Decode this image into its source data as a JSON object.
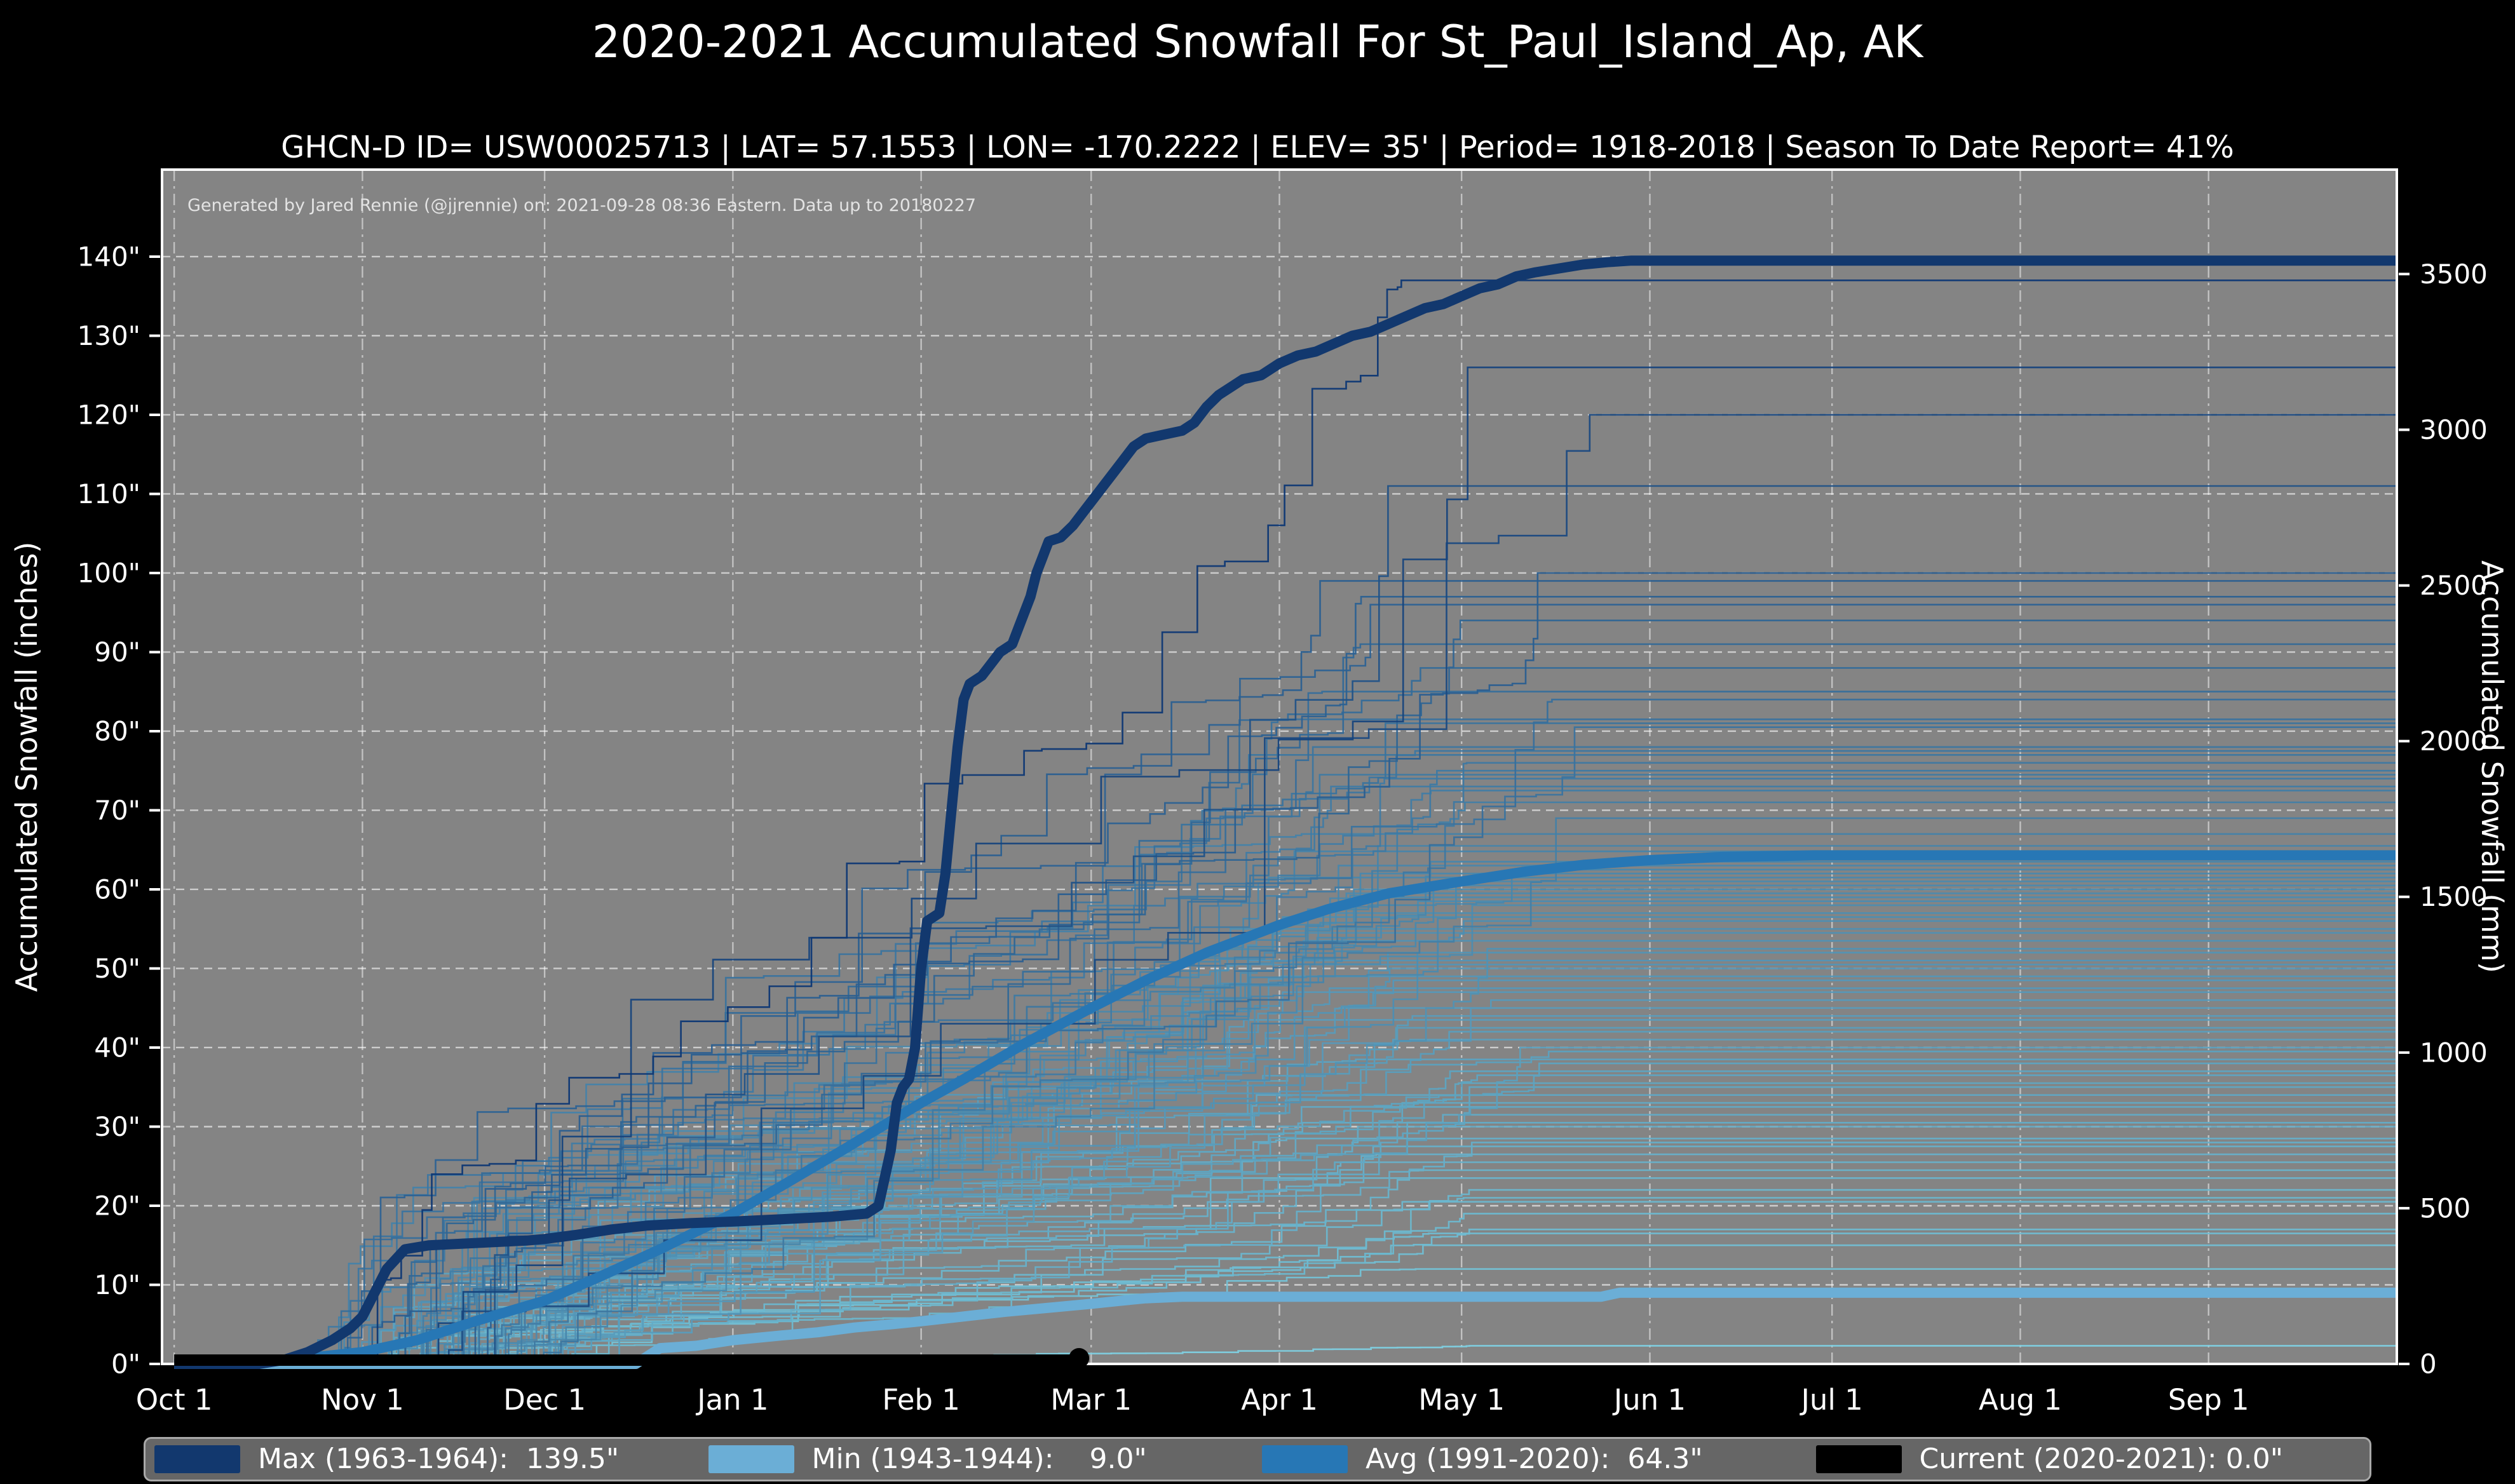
{
  "title": "2020-2021 Accumulated Snowfall For St_Paul_Island_Ap, AK",
  "subtitle": "GHCN-D ID= USW00025713 | LAT= 57.1553 | LON= -170.2222 | ELEV= 35' | Period= 1918-2018 | Season To Date Report= 41%",
  "credit": "Generated by Jared Rennie (@jjrennie) on: 2021-09-28 08:36 Eastern. Data up to 20180227",
  "colors": {
    "page_bg": "#000000",
    "plot_bg": "#848484",
    "grid": "#ffffff",
    "spine": "#ffffff",
    "text": "#ffffff",
    "legend_bg": "#666666",
    "legend_border": "#a9a9a9",
    "max_line": "#12386e",
    "avg_line": "#2777b5",
    "min_line": "#6baed6",
    "current_line": "#000000",
    "ensemble_low": "#7ed0e0",
    "ensemble_high": "#0b3472"
  },
  "axes": {
    "left_label": "Accumulated Snowfall (inches)",
    "right_label": "Accumulated Snowfall (mm)",
    "x_tick_labels": [
      "Oct 1",
      "Nov 1",
      "Dec 1",
      "Jan 1",
      "Feb 1",
      "Mar 1",
      "Apr 1",
      "May 1",
      "Jun 1",
      "Jul 1",
      "Aug 1",
      "Sep 1"
    ],
    "x_tick_days": [
      0,
      31,
      61,
      92,
      123,
      151,
      182,
      212,
      243,
      273,
      304,
      335
    ],
    "x_domain_days": [
      -2,
      366
    ],
    "y_ticks_inches": [
      0,
      10,
      20,
      30,
      40,
      50,
      60,
      70,
      80,
      90,
      100,
      110,
      120,
      130,
      140
    ],
    "inch_suffix": "\"",
    "y_ticks_mm": [
      0,
      500,
      1000,
      1500,
      2000,
      2500,
      3000,
      3500
    ],
    "y_max_inches": 151,
    "grid": true
  },
  "legend": {
    "items": [
      {
        "series": "max",
        "label": "Max (1963-1964):  139.5\"",
        "color": "#12386e"
      },
      {
        "series": "min",
        "label": "Min (1943-1944):    9.0\"",
        "color": "#6baed6"
      },
      {
        "series": "avg",
        "label": "Avg (1991-2020):  64.3\"",
        "color": "#2777b5"
      },
      {
        "series": "current",
        "label": "Current (2020-2021): 0.0\"",
        "color": "#000000"
      }
    ]
  },
  "chart_data": {
    "type": "line",
    "x_unit": "days since Oct 1",
    "y_unit": "inches",
    "title": "2020-2021 Accumulated Snowfall For St_Paul_Island_Ap, AK",
    "series": [
      {
        "name": "Max (1963-1964)",
        "final_value": 139.5,
        "color": "#12386e",
        "width": 16,
        "points": [
          [
            0,
            0
          ],
          [
            14,
            0
          ],
          [
            18,
            0.5
          ],
          [
            22,
            1.5
          ],
          [
            26,
            3
          ],
          [
            29,
            4.5
          ],
          [
            31,
            6
          ],
          [
            33,
            9
          ],
          [
            35,
            12
          ],
          [
            38,
            14.5
          ],
          [
            42,
            15
          ],
          [
            50,
            15.3
          ],
          [
            58,
            15.6
          ],
          [
            61,
            15.8
          ],
          [
            66,
            16.3
          ],
          [
            72,
            17
          ],
          [
            78,
            17.5
          ],
          [
            85,
            17.8
          ],
          [
            92,
            18
          ],
          [
            100,
            18.3
          ],
          [
            108,
            18.6
          ],
          [
            114,
            19
          ],
          [
            116,
            20
          ],
          [
            118,
            27
          ],
          [
            119,
            33
          ],
          [
            120,
            35
          ],
          [
            121,
            36
          ],
          [
            122,
            40
          ],
          [
            123,
            50
          ],
          [
            124,
            56
          ],
          [
            126,
            57
          ],
          [
            127,
            62
          ],
          [
            128,
            70
          ],
          [
            129,
            78
          ],
          [
            130,
            84
          ],
          [
            131,
            86
          ],
          [
            133,
            87
          ],
          [
            134,
            88
          ],
          [
            136,
            90
          ],
          [
            138,
            91
          ],
          [
            139,
            93
          ],
          [
            141,
            97
          ],
          [
            142,
            100
          ],
          [
            143,
            102
          ],
          [
            144,
            104
          ],
          [
            146,
            104.5
          ],
          [
            148,
            106
          ],
          [
            150,
            108
          ],
          [
            152,
            110
          ],
          [
            154,
            112
          ],
          [
            156,
            114
          ],
          [
            158,
            116
          ],
          [
            160,
            117
          ],
          [
            163,
            117.5
          ],
          [
            166,
            118
          ],
          [
            168,
            119
          ],
          [
            170,
            121
          ],
          [
            172,
            122.5
          ],
          [
            174,
            123.5
          ],
          [
            176,
            124.5
          ],
          [
            179,
            125
          ],
          [
            182,
            126.5
          ],
          [
            185,
            127.5
          ],
          [
            188,
            128
          ],
          [
            191,
            129
          ],
          [
            194,
            130
          ],
          [
            197,
            130.5
          ],
          [
            200,
            131.5
          ],
          [
            203,
            132.5
          ],
          [
            206,
            133.5
          ],
          [
            209,
            134
          ],
          [
            212,
            135
          ],
          [
            215,
            136
          ],
          [
            218,
            136.5
          ],
          [
            221,
            137.5
          ],
          [
            224,
            138
          ],
          [
            228,
            138.5
          ],
          [
            232,
            139
          ],
          [
            236,
            139.3
          ],
          [
            240,
            139.5
          ],
          [
            366,
            139.5
          ]
        ]
      },
      {
        "name": "Avg (1991-2020)",
        "final_value": 64.3,
        "color": "#2777b5",
        "width": 16,
        "points": [
          [
            0,
            0
          ],
          [
            10,
            0.1
          ],
          [
            20,
            0.6
          ],
          [
            31,
            1.5
          ],
          [
            40,
            3
          ],
          [
            50,
            5.5
          ],
          [
            61,
            8
          ],
          [
            70,
            11
          ],
          [
            80,
            14.5
          ],
          [
            92,
            19
          ],
          [
            100,
            22.5
          ],
          [
            110,
            27
          ],
          [
            123,
            33
          ],
          [
            130,
            36
          ],
          [
            140,
            40.5
          ],
          [
            151,
            45
          ],
          [
            160,
            48.5
          ],
          [
            170,
            52
          ],
          [
            182,
            55.5
          ],
          [
            190,
            57.5
          ],
          [
            200,
            59.5
          ],
          [
            212,
            61
          ],
          [
            222,
            62.2
          ],
          [
            232,
            63.1
          ],
          [
            243,
            63.7
          ],
          [
            255,
            64.1
          ],
          [
            270,
            64.3
          ],
          [
            366,
            64.3
          ]
        ]
      },
      {
        "name": "Min (1943-1944)",
        "final_value": 9.0,
        "color": "#6baed6",
        "width": 16,
        "points": [
          [
            0,
            0
          ],
          [
            76,
            0
          ],
          [
            78,
            1
          ],
          [
            80,
            2
          ],
          [
            86,
            2.3
          ],
          [
            92,
            3
          ],
          [
            100,
            3.6
          ],
          [
            106,
            4
          ],
          [
            112,
            4.6
          ],
          [
            118,
            5
          ],
          [
            123,
            5.4
          ],
          [
            130,
            6
          ],
          [
            137,
            6.6
          ],
          [
            144,
            7.1
          ],
          [
            151,
            7.6
          ],
          [
            156,
            8
          ],
          [
            160,
            8.3
          ],
          [
            166,
            8.5
          ],
          [
            235,
            8.5
          ],
          [
            238,
            9
          ],
          [
            366,
            9
          ]
        ]
      },
      {
        "name": "Current (2020-2021)",
        "final_value": 0.0,
        "color": "#000000",
        "width": 18,
        "end_marker": true,
        "end_day": 149,
        "points": [
          [
            0,
            0
          ],
          [
            149,
            0
          ]
        ]
      }
    ],
    "ensemble": {
      "description": "Individual season cumulative snowfall traces 1918-2018, step curves accumulating Oct-May then flat to season end; color mapped light cyan (low total) to dark navy (high total). Final totals (inches) read from right edge:",
      "count": 94,
      "final_values": [
        137,
        126,
        120,
        111,
        100,
        99,
        97,
        96,
        94,
        91,
        88,
        85,
        84,
        81.5,
        81,
        80.5,
        78,
        77.5,
        77,
        76,
        75,
        74.5,
        74,
        73,
        72.5,
        71,
        69,
        67,
        65.5,
        64.8,
        63.5,
        63,
        62.5,
        62,
        61.5,
        61,
        60.5,
        60,
        59.5,
        59,
        58.5,
        58,
        57,
        56.5,
        56,
        55,
        54.5,
        53.5,
        52.5,
        52,
        51,
        50.5,
        50,
        49,
        48.5,
        47.5,
        47,
        46,
        45,
        44,
        43.5,
        42.5,
        42,
        41,
        40,
        39.5,
        38.5,
        38,
        37,
        36.5,
        35.5,
        35,
        34,
        33,
        32.5,
        31.5,
        30.5,
        30,
        28.5,
        28,
        27.5,
        26.5,
        25.5,
        24.5,
        23.5,
        22,
        21,
        20.5,
        19,
        17,
        16.5,
        15,
        12,
        2.3
      ],
      "value_range": [
        2.3,
        137
      ],
      "line_width": 2.6
    }
  }
}
